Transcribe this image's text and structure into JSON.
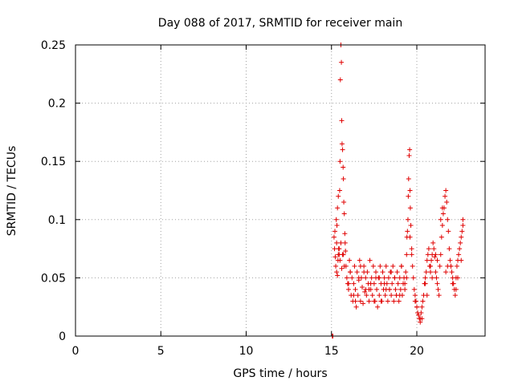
{
  "chart_data": {
    "type": "scatter",
    "title": "Day 088 of 2017, SRMTID for receiver main",
    "xlabel": "GPS time / hours",
    "ylabel": "SRMTID / TECUs",
    "xlim": [
      0,
      24
    ],
    "ylim": [
      0,
      0.25
    ],
    "xticks": [
      0,
      5,
      10,
      15,
      20
    ],
    "xtick_labels": [
      "0",
      "5",
      "10",
      "15",
      "20"
    ],
    "yticks": [
      0,
      0.05,
      0.1,
      0.15,
      0.2,
      0.25
    ],
    "ytick_labels": [
      "0",
      "0.05",
      "0.1",
      "0.15",
      "0.2",
      "0.25"
    ],
    "grid": true,
    "marker": "+",
    "color": "#e00000",
    "series": [
      {
        "name": "SRMTID",
        "x": [
          15.05,
          15.08,
          15.15,
          15.18,
          15.2,
          15.22,
          15.25,
          15.28,
          15.3,
          15.32,
          15.35,
          15.38,
          15.4,
          15.42,
          15.45,
          15.48,
          15.5,
          15.52,
          15.55,
          15.58,
          15.6,
          15.62,
          15.65,
          15.68,
          15.7,
          15.72,
          15.75,
          15.78,
          15.8,
          15.82,
          15.85,
          15.9,
          15.95,
          16.0,
          16.05,
          16.1,
          16.15,
          16.2,
          16.25,
          16.3,
          16.35,
          16.4,
          16.45,
          16.5,
          16.55,
          16.6,
          16.65,
          16.7,
          16.75,
          16.8,
          16.85,
          16.9,
          16.95,
          17.0,
          17.05,
          17.1,
          17.15,
          17.2,
          17.25,
          17.3,
          17.35,
          17.4,
          17.45,
          17.5,
          17.55,
          17.6,
          17.65,
          17.7,
          17.75,
          17.8,
          17.85,
          17.9,
          17.95,
          18.0,
          18.05,
          18.1,
          18.15,
          18.2,
          18.25,
          18.3,
          18.35,
          18.4,
          18.45,
          18.5,
          18.55,
          18.6,
          18.65,
          18.7,
          18.75,
          18.8,
          18.85,
          18.9,
          18.95,
          19.0,
          19.05,
          19.1,
          19.15,
          19.2,
          19.25,
          19.3,
          19.35,
          19.4,
          19.42,
          19.45,
          19.48,
          19.5,
          19.52,
          19.55,
          19.58,
          19.6,
          19.62,
          19.65,
          19.7,
          19.75,
          19.8,
          19.85,
          19.9,
          19.95,
          20.0,
          20.05,
          20.1,
          20.15,
          20.2,
          20.25,
          20.3,
          20.35,
          20.4,
          20.45,
          20.5,
          20.55,
          20.6,
          20.65,
          20.7,
          20.75,
          20.8,
          20.85,
          20.9,
          20.95,
          21.0,
          21.05,
          21.1,
          21.15,
          21.2,
          21.25,
          21.3,
          21.35,
          21.4,
          21.45,
          21.5,
          21.55,
          21.6,
          21.65,
          21.7,
          21.75,
          21.8,
          21.85,
          21.9,
          21.95,
          22.0,
          22.05,
          22.1,
          22.15,
          22.2,
          22.25,
          22.3,
          22.35,
          22.4,
          22.45,
          22.5,
          22.55,
          22.6,
          22.65,
          22.7,
          15.3,
          15.4,
          15.5,
          15.6,
          15.7,
          16.0,
          16.3,
          16.6,
          16.9,
          17.2,
          17.5,
          17.8,
          18.1,
          18.4,
          18.7,
          19.0,
          19.3,
          19.6,
          19.9,
          20.2,
          20.5,
          20.8,
          21.1,
          21.4,
          21.7,
          22.0,
          22.3,
          22.6,
          15.35,
          15.45,
          15.55,
          15.65,
          15.75,
          16.1,
          16.4,
          16.7,
          17.0,
          17.3,
          17.6,
          17.9,
          18.2,
          18.5,
          18.8,
          19.1,
          19.4,
          19.7,
          20.0,
          20.3,
          20.6,
          20.9,
          21.2,
          21.5,
          21.8,
          22.1,
          22.4,
          22.7
        ],
        "y": [
          0.0,
          0.0,
          0.085,
          0.075,
          0.09,
          0.068,
          0.06,
          0.1,
          0.055,
          0.095,
          0.11,
          0.065,
          0.12,
          0.075,
          0.07,
          0.125,
          0.15,
          0.22,
          0.25,
          0.235,
          0.185,
          0.165,
          0.16,
          0.145,
          0.135,
          0.115,
          0.105,
          0.088,
          0.08,
          0.073,
          0.06,
          0.05,
          0.045,
          0.04,
          0.065,
          0.055,
          0.035,
          0.05,
          0.03,
          0.045,
          0.06,
          0.04,
          0.025,
          0.055,
          0.035,
          0.048,
          0.065,
          0.03,
          0.05,
          0.042,
          0.028,
          0.06,
          0.038,
          0.05,
          0.035,
          0.055,
          0.045,
          0.03,
          0.065,
          0.04,
          0.05,
          0.035,
          0.06,
          0.045,
          0.03,
          0.055,
          0.04,
          0.025,
          0.05,
          0.035,
          0.06,
          0.045,
          0.03,
          0.055,
          0.04,
          0.05,
          0.035,
          0.06,
          0.045,
          0.03,
          0.05,
          0.04,
          0.055,
          0.035,
          0.045,
          0.06,
          0.03,
          0.05,
          0.04,
          0.035,
          0.055,
          0.045,
          0.03,
          0.05,
          0.04,
          0.06,
          0.035,
          0.045,
          0.05,
          0.04,
          0.055,
          0.07,
          0.085,
          0.09,
          0.1,
          0.12,
          0.135,
          0.155,
          0.16,
          0.125,
          0.11,
          0.095,
          0.075,
          0.06,
          0.05,
          0.04,
          0.035,
          0.03,
          0.025,
          0.02,
          0.018,
          0.015,
          0.012,
          0.02,
          0.025,
          0.03,
          0.035,
          0.045,
          0.05,
          0.055,
          0.065,
          0.07,
          0.075,
          0.06,
          0.055,
          0.065,
          0.07,
          0.08,
          0.075,
          0.068,
          0.055,
          0.05,
          0.045,
          0.04,
          0.035,
          0.06,
          0.07,
          0.085,
          0.095,
          0.105,
          0.11,
          0.12,
          0.125,
          0.115,
          0.1,
          0.09,
          0.075,
          0.065,
          0.06,
          0.055,
          0.05,
          0.045,
          0.04,
          0.035,
          0.05,
          0.06,
          0.065,
          0.07,
          0.075,
          0.08,
          0.085,
          0.09,
          0.1,
          0.08,
          0.07,
          0.065,
          0.058,
          0.07,
          0.045,
          0.035,
          0.05,
          0.055,
          0.04,
          0.03,
          0.05,
          0.045,
          0.04,
          0.05,
          0.035,
          0.045,
          0.085,
          0.03,
          0.015,
          0.045,
          0.06,
          0.07,
          0.1,
          0.055,
          0.06,
          0.04,
          0.065,
          0.052,
          0.075,
          0.08,
          0.07,
          0.06,
          0.055,
          0.03,
          0.06,
          0.04,
          0.045,
          0.05,
          0.03,
          0.04,
          0.055,
          0.035,
          0.06,
          0.05,
          0.07,
          0.025,
          0.015,
          0.035,
          0.05,
          0.065,
          0.11,
          0.06,
          0.045,
          0.05,
          0.095
        ]
      }
    ]
  }
}
